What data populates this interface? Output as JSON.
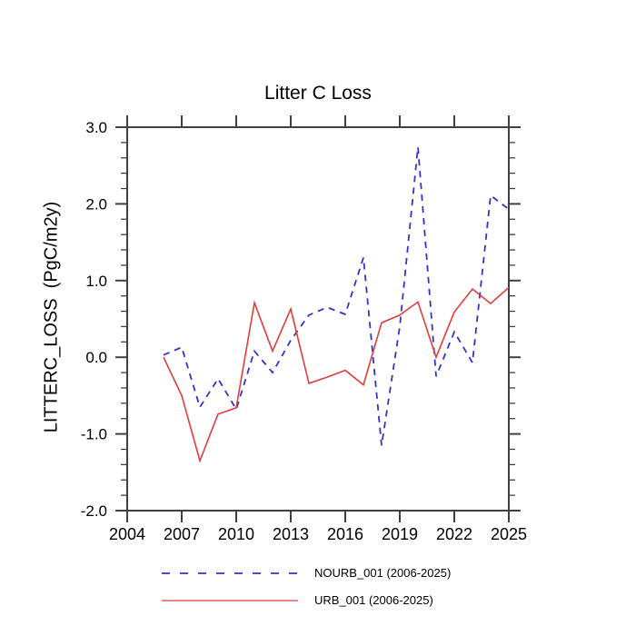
{
  "page": {
    "background": "#ffffff"
  },
  "chart_data": {
    "type": "line",
    "title": "Litter C Loss",
    "ylabel": "LITTERC_LOSS  (PgC/m2y)",
    "xlabel": "",
    "xlim": [
      2004,
      2025
    ],
    "ylim": [
      -2.0,
      3.0
    ],
    "grid": false,
    "legend_position": "bottom",
    "axis_color": "#404040",
    "text_color": "#000000",
    "x_major_ticks": [
      2004,
      2007,
      2010,
      2013,
      2016,
      2019,
      2022,
      2025
    ],
    "y_major_ticks": [
      3.0,
      2.0,
      1.0,
      0.0,
      -1.0,
      -2.0
    ],
    "y_minor_step": 0.2,
    "x": [
      2006,
      2007,
      2008,
      2009,
      2010,
      2011,
      2012,
      2013,
      2014,
      2015,
      2016,
      2017,
      2018,
      2019,
      2020,
      2021,
      2022,
      2023,
      2024,
      2025
    ],
    "series": [
      {
        "name": "NOURB_001 (2006-2025)",
        "color": "#3333cc",
        "line_style": "dashed",
        "values": [
          0.03,
          0.13,
          -0.65,
          -0.28,
          -0.68,
          0.08,
          -0.2,
          0.22,
          0.55,
          0.65,
          0.56,
          1.3,
          -1.15,
          0.4,
          2.74,
          -0.25,
          0.33,
          -0.07,
          2.11,
          1.93
        ]
      },
      {
        "name": "URB_001 (2006-2025)",
        "color": "#e03c3c",
        "line_style": "solid",
        "values": [
          0.0,
          -0.5,
          -1.35,
          -0.74,
          -0.66,
          0.71,
          0.08,
          0.63,
          -0.34,
          -0.26,
          -0.17,
          -0.36,
          0.45,
          0.55,
          0.72,
          0.0,
          0.59,
          0.89,
          0.7,
          0.91
        ]
      }
    ]
  }
}
